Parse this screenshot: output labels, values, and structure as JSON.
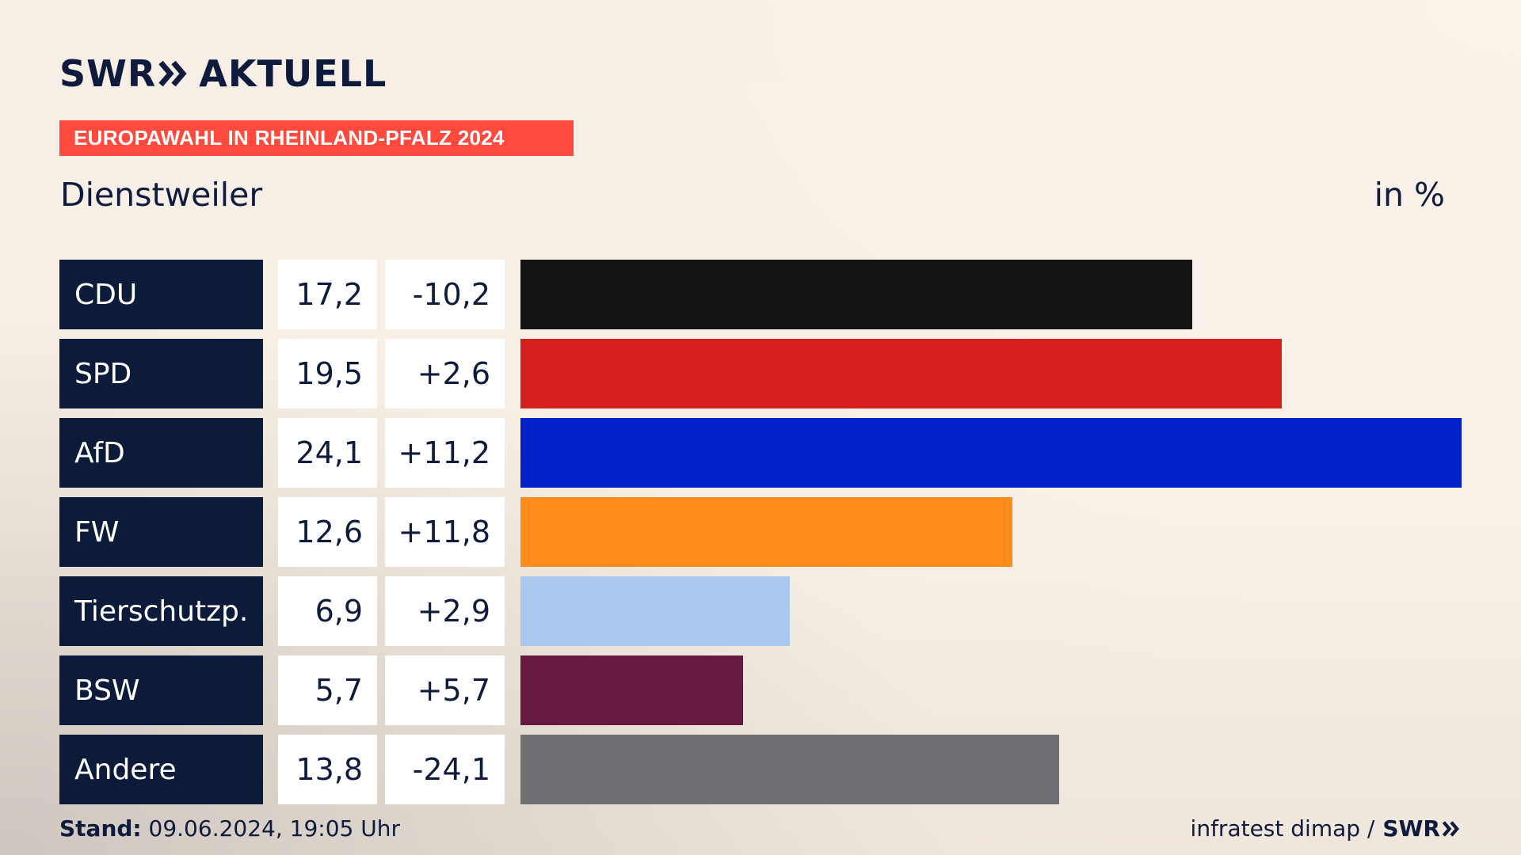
{
  "brand": {
    "logo_swr": "SWR",
    "logo_aktuell": "AKTUELL",
    "icon": "double-chevron-icon",
    "accent_color": "#ff4a3d",
    "navy_color": "#0d1b3a"
  },
  "banner": {
    "text": "EUROPAWAHL IN RHEINLAND-PFALZ 2024"
  },
  "header": {
    "location": "Dienstweiler",
    "unit": "in %"
  },
  "chart_data": {
    "type": "bar",
    "orientation": "horizontal",
    "title": "EUROPAWAHL IN RHEINLAND-PFALZ 2024",
    "subtitle": "Dienstweiler",
    "unit": "in %",
    "categories": [
      "CDU",
      "SPD",
      "AfD",
      "FW",
      "Tierschutzp.",
      "BSW",
      "Andere"
    ],
    "values": [
      17.2,
      19.5,
      24.1,
      12.6,
      6.9,
      5.7,
      13.8
    ],
    "value_labels": [
      "17,2",
      "19,5",
      "24,1",
      "12,6",
      "6,9",
      "5,7",
      "13,8"
    ],
    "change_labels": [
      "-10,2",
      "+2,6",
      "+11,2",
      "+11,8",
      "+2,9",
      "+5,7",
      "-24,1"
    ],
    "changes": [
      -10.2,
      2.6,
      11.2,
      11.8,
      2.9,
      5.7,
      -24.1
    ],
    "colors": [
      "#141414",
      "#d61f1f",
      "#0020c8",
      "#ff8c1a",
      "#aac8ef",
      "#661a3f",
      "#6f7073"
    ],
    "xlim": [
      0,
      24.1
    ],
    "grid": false,
    "legend": "none"
  },
  "footer": {
    "stand_label": "Stand:",
    "stand_value": "09.06.2024, 19:05 Uhr",
    "source": "infratest dimap /",
    "source_brand": "SWR"
  }
}
